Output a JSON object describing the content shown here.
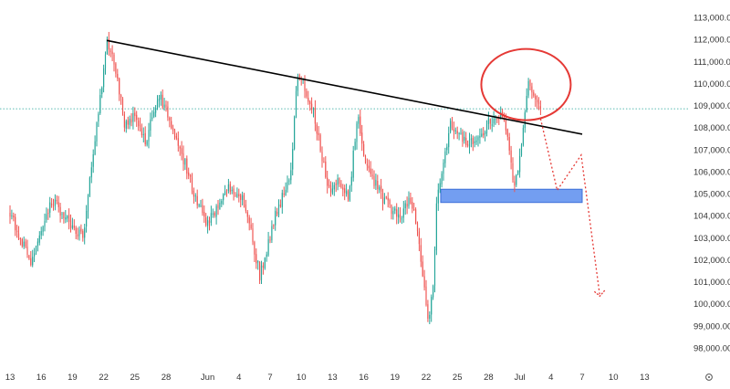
{
  "chart_data": {
    "type": "candlestick",
    "colors": {
      "up": "#26a69a",
      "down": "#ef5350",
      "trendline": "#000000",
      "circle": "#e53935",
      "zone_fill": "#5b8def",
      "zone_stroke": "#3c6fd8",
      "projection": "#e53935",
      "last_price_line": "#26a69a"
    },
    "y_axis": {
      "ylim": [
        97400,
        113800
      ],
      "ticks": [
        98000,
        99000,
        100000,
        101000,
        102000,
        103000,
        104000,
        105000,
        106000,
        107000,
        108000,
        109000,
        110000,
        111000,
        112000,
        113000
      ],
      "tick_labels": [
        "98,000.00",
        "99,000.00",
        "100,000.00",
        "101,000.00",
        "102,000.00",
        "103,000.00",
        "104,000.00",
        "105,000.00",
        "106,000.00",
        "107,000.00",
        "108,000.00",
        "109,000.00",
        "110,000.00",
        "111,000.00",
        "112,000.00",
        "113,000.00"
      ]
    },
    "x_axis": {
      "labels": [
        "13",
        "16",
        "19",
        "22",
        "25",
        "28",
        "Jun",
        "4",
        "7",
        "10",
        "13",
        "16",
        "19",
        "22",
        "25",
        "28",
        "Jul",
        "4",
        "7",
        "10",
        "13"
      ],
      "label_days": [
        0,
        3,
        6,
        9,
        12,
        15,
        19,
        22,
        25,
        28,
        31,
        34,
        37,
        40,
        43,
        46,
        49,
        52,
        55,
        58,
        61
      ],
      "timeframe_hours": 4
    },
    "last_price": 108850,
    "anchors": [
      [
        0,
        104000
      ],
      [
        2,
        102000
      ],
      [
        4,
        104700
      ],
      [
        7,
        103000
      ],
      [
        9,
        110500
      ],
      [
        9.3,
        111800
      ],
      [
        10,
        111000
      ],
      [
        11,
        108200
      ],
      [
        12,
        108500
      ],
      [
        13,
        107300
      ],
      [
        14.3,
        109500
      ],
      [
        15,
        108700
      ],
      [
        16,
        107600
      ],
      [
        17.5,
        105300
      ],
      [
        19,
        103600
      ],
      [
        21,
        105200
      ],
      [
        22.6,
        104600
      ],
      [
        24,
        101300
      ],
      [
        25.5,
        104000
      ],
      [
        26.5,
        105300
      ],
      [
        27,
        106000
      ],
      [
        27.6,
        110300
      ],
      [
        28.3,
        109900
      ],
      [
        29.3,
        108500
      ],
      [
        30.6,
        105100
      ],
      [
        31.5,
        105500
      ],
      [
        32.6,
        104900
      ],
      [
        33.4,
        108600
      ],
      [
        34.2,
        106300
      ],
      [
        35.8,
        104800
      ],
      [
        37.4,
        103900
      ],
      [
        38.5,
        104800
      ],
      [
        39.2,
        103300
      ],
      [
        40.2,
        99100
      ],
      [
        40.7,
        100800
      ],
      [
        41,
        104800
      ],
      [
        41.4,
        105600
      ],
      [
        42.3,
        108100
      ],
      [
        43.2,
        107600
      ],
      [
        44.8,
        107200
      ],
      [
        46,
        108300
      ],
      [
        47.5,
        108500
      ],
      [
        48.5,
        105200
      ],
      [
        49.4,
        108100
      ],
      [
        49.8,
        109900
      ],
      [
        50.6,
        109300
      ],
      [
        51,
        108850
      ]
    ],
    "trendline": {
      "from": [
        9.3,
        111950
      ],
      "to": [
        55,
        107700
      ]
    },
    "support_zone": {
      "x_start": 41.4,
      "x_end": 55,
      "y_low": 104600,
      "y_high": 105200
    },
    "highlight_circle": {
      "x": 49.6,
      "y": 109950
    },
    "projection_path": [
      [
        51,
        108400
      ],
      [
        52.6,
        105150
      ],
      [
        54.9,
        106750
      ],
      [
        56.7,
        100350
      ]
    ]
  }
}
